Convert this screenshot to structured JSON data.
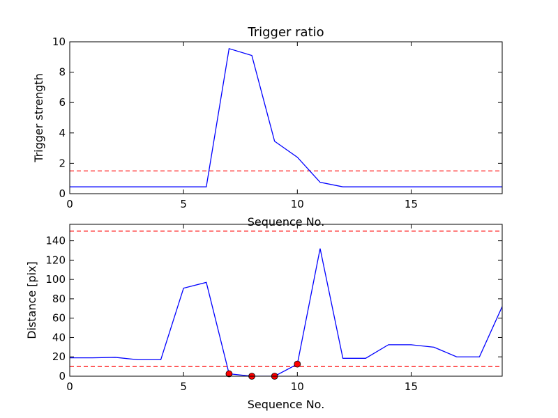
{
  "chart_data": [
    {
      "type": "line",
      "title": "Trigger ratio",
      "xlabel": "Sequence No.",
      "ylabel": "Trigger strength",
      "xlim": [
        0,
        19
      ],
      "ylim": [
        0,
        10
      ],
      "xticks": [
        0,
        5,
        10,
        15
      ],
      "yticks": [
        0,
        2,
        4,
        6,
        8,
        10
      ],
      "grid": false,
      "series": [
        {
          "style": "solid",
          "color": "#0000ff",
          "x": [
            0,
            1,
            2,
            3,
            4,
            5,
            6,
            7,
            8,
            9,
            10,
            11,
            12,
            13,
            14,
            15,
            16,
            17,
            18,
            19
          ],
          "values": [
            0.45,
            0.45,
            0.45,
            0.45,
            0.45,
            0.45,
            0.45,
            9.55,
            9.1,
            3.45,
            2.4,
            0.75,
            0.45,
            0.45,
            0.45,
            0.45,
            0.45,
            0.45,
            0.45,
            0.45
          ]
        }
      ],
      "hlines": [
        {
          "y": 1.5,
          "color": "#ff0000",
          "style": "dashed"
        }
      ],
      "markers": []
    },
    {
      "type": "line",
      "title": "",
      "xlabel": "Sequence No.",
      "ylabel": "Distance [pix]",
      "xlim": [
        0,
        19
      ],
      "ylim": [
        0,
        157
      ],
      "xticks": [
        0,
        5,
        10,
        15
      ],
      "yticks": [
        0,
        20,
        40,
        60,
        80,
        100,
        120,
        140
      ],
      "grid": false,
      "series": [
        {
          "style": "solid",
          "color": "#0000ff",
          "x": [
            0,
            1,
            2,
            3,
            4,
            5,
            6,
            7,
            8,
            9,
            10,
            11,
            12,
            13,
            14,
            15,
            16,
            17,
            18,
            19
          ],
          "values": [
            19,
            19,
            19.5,
            17,
            17,
            91,
            97,
            2.5,
            0,
            0,
            12.5,
            132,
            18.5,
            18.5,
            32.5,
            32.5,
            30,
            20,
            20,
            72
          ]
        }
      ],
      "hlines": [
        {
          "y": 150,
          "color": "#ff0000",
          "style": "dashed"
        },
        {
          "y": 10,
          "color": "#ff0000",
          "style": "dashed"
        }
      ],
      "markers": [
        {
          "x": 7,
          "y": 2.5,
          "color": "#ff0000"
        },
        {
          "x": 8,
          "y": 0,
          "color": "#ff0000"
        },
        {
          "x": 9,
          "y": 0,
          "color": "#ff0000"
        },
        {
          "x": 10,
          "y": 12.5,
          "color": "#ff0000"
        }
      ]
    }
  ]
}
